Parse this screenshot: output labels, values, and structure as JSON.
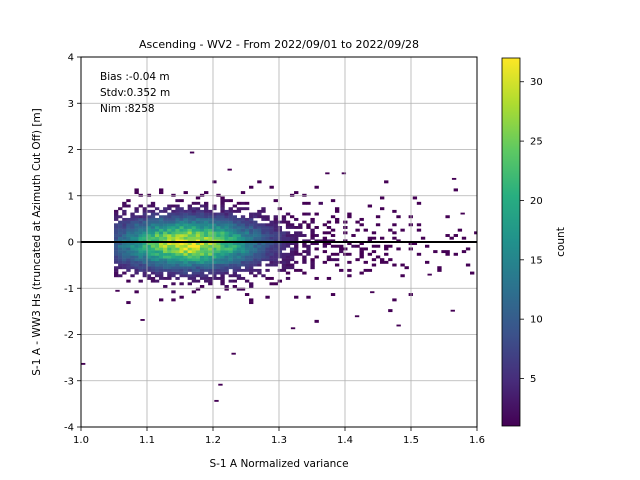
{
  "chart_data": {
    "type": "heatmap",
    "title": "Ascending - WV2 - From 2022/09/01 to 2022/09/28",
    "xlabel": "S-1 A Normalized variance",
    "ylabel": "S-1 A - WW3 Hs (truncated at Azimuth Cut Off) [m]",
    "xlim": [
      1.0,
      1.6
    ],
    "ylim": [
      -4,
      4
    ],
    "x_ticks": [
      "1.0",
      "1.1",
      "1.2",
      "1.3",
      "1.4",
      "1.5",
      "1.6"
    ],
    "y_ticks": [
      "-4",
      "-3",
      "-2",
      "-1",
      "0",
      "1",
      "2",
      "3",
      "4"
    ],
    "grid": true,
    "reference_line_y": 0,
    "colormap": "viridis",
    "colorbar": {
      "label": "count",
      "min": 1,
      "max": 32,
      "ticks": [
        "5",
        "10",
        "15",
        "20",
        "25",
        "30"
      ]
    },
    "stats": [
      {
        "label": "Bias :-0.04 m"
      },
      {
        "label": "Stdv:0.352 m"
      },
      {
        "label": "Nim :8258"
      }
    ],
    "density": {
      "center_x": 1.16,
      "center_y": -0.05,
      "sigma_x": 0.075,
      "sigma_y": 0.36,
      "peak_count": 32,
      "x_range": [
        1.05,
        1.6
      ],
      "y_range": [
        -1.8,
        1.5
      ]
    },
    "outliers": [
      {
        "x": 1.0,
        "y": -2.65
      },
      {
        "x": 1.165,
        "y": 1.92
      },
      {
        "x": 1.222,
        "y": 1.55
      },
      {
        "x": 1.228,
        "y": -2.43
      },
      {
        "x": 1.208,
        "y": -3.1
      },
      {
        "x": 1.202,
        "y": -3.45
      },
      {
        "x": 1.562,
        "y": 1.35
      },
      {
        "x": 1.415,
        "y": -1.62
      },
      {
        "x": 1.478,
        "y": -1.82
      },
      {
        "x": 1.56,
        "y": -1.5
      },
      {
        "x": 1.09,
        "y": -1.7
      },
      {
        "x": 1.318,
        "y": -1.88
      },
      {
        "x": 1.37,
        "y": 1.47
      },
      {
        "x": 1.395,
        "y": 1.47
      },
      {
        "x": 1.575,
        "y": 0.6
      },
      {
        "x": 1.052,
        "y": -1.07
      },
      {
        "x": 1.438,
        "y": -1.1
      },
      {
        "x": 1.525,
        "y": -0.72
      }
    ],
    "seed": 8258
  }
}
